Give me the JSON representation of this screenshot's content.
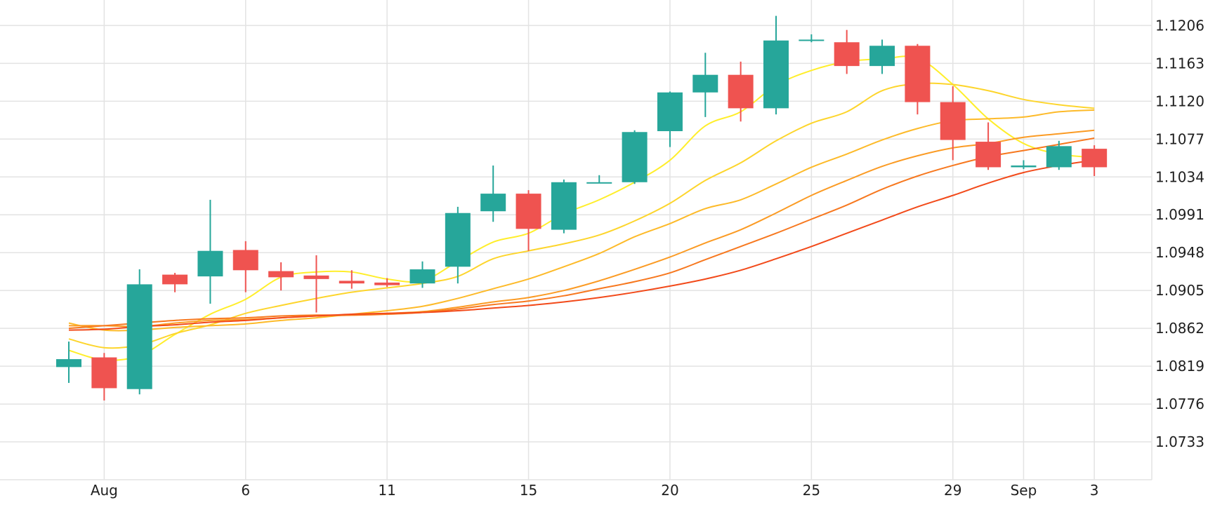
{
  "chart_data": {
    "type": "candlestick",
    "title": "",
    "xlabel": "",
    "ylabel": "",
    "ylim": [
      1.069,
      1.1235
    ],
    "grid": true,
    "legend": "none",
    "colors": {
      "up": "#26a69a",
      "down": "#ef5350",
      "grid": "#e3e3e3",
      "text": "#1f1f1f",
      "background": "#ffffff"
    },
    "y_ticks": [
      "1.1206",
      "1.1163",
      "1.1120",
      "1.1077",
      "1.1034",
      "1.0991",
      "1.0948",
      "1.0905",
      "1.0862",
      "1.0819",
      "1.0776",
      "1.0733"
    ],
    "x_ticks": [
      {
        "label": "Aug",
        "index": 1
      },
      {
        "label": "6",
        "index": 5
      },
      {
        "label": "11",
        "index": 9
      },
      {
        "label": "15",
        "index": 13
      },
      {
        "label": "20",
        "index": 17
      },
      {
        "label": "25",
        "index": 21
      },
      {
        "label": "29",
        "index": 25
      },
      {
        "label": "Sep",
        "index": 27
      },
      {
        "label": "3",
        "index": 29
      }
    ],
    "candles": [
      {
        "o": 1.0818,
        "h": 1.0847,
        "l": 1.08,
        "c": 1.0827
      },
      {
        "o": 1.0829,
        "h": 1.0834,
        "l": 1.078,
        "c": 1.0794
      },
      {
        "o": 1.0793,
        "h": 1.0929,
        "l": 1.0787,
        "c": 1.0912
      },
      {
        "o": 1.0923,
        "h": 1.0925,
        "l": 1.0903,
        "c": 1.0912
      },
      {
        "o": 1.0921,
        "h": 1.1008,
        "l": 1.089,
        "c": 1.095
      },
      {
        "o": 1.0951,
        "h": 1.0961,
        "l": 1.0903,
        "c": 1.0928
      },
      {
        "o": 1.0927,
        "h": 1.0937,
        "l": 1.0905,
        "c": 1.092
      },
      {
        "o": 1.0922,
        "h": 1.0945,
        "l": 1.088,
        "c": 1.0918
      },
      {
        "o": 1.0916,
        "h": 1.0928,
        "l": 1.0907,
        "c": 1.0913
      },
      {
        "o": 1.0914,
        "h": 1.0919,
        "l": 1.0909,
        "c": 1.0911
      },
      {
        "o": 1.0913,
        "h": 1.0938,
        "l": 1.0908,
        "c": 1.0929
      },
      {
        "o": 1.0932,
        "h": 1.1,
        "l": 1.0913,
        "c": 1.0993
      },
      {
        "o": 1.0995,
        "h": 1.1047,
        "l": 1.0983,
        "c": 1.1015
      },
      {
        "o": 1.1015,
        "h": 1.1019,
        "l": 1.095,
        "c": 1.0975
      },
      {
        "o": 1.0974,
        "h": 1.1031,
        "l": 1.097,
        "c": 1.1028
      },
      {
        "o": 1.1027,
        "h": 1.1036,
        "l": 1.1027,
        "c": 1.1028
      },
      {
        "o": 1.1028,
        "h": 1.1087,
        "l": 1.1026,
        "c": 1.1085
      },
      {
        "o": 1.1086,
        "h": 1.1131,
        "l": 1.1068,
        "c": 1.113
      },
      {
        "o": 1.113,
        "h": 1.1175,
        "l": 1.1102,
        "c": 1.115
      },
      {
        "o": 1.115,
        "h": 1.1165,
        "l": 1.1097,
        "c": 1.1112
      },
      {
        "o": 1.1112,
        "h": 1.1217,
        "l": 1.1105,
        "c": 1.1189
      },
      {
        "o": 1.119,
        "h": 1.1196,
        "l": 1.1187,
        "c": 1.119
      },
      {
        "o": 1.1187,
        "h": 1.1201,
        "l": 1.1151,
        "c": 1.116
      },
      {
        "o": 1.116,
        "h": 1.119,
        "l": 1.1151,
        "c": 1.1183
      },
      {
        "o": 1.1183,
        "h": 1.1185,
        "l": 1.1105,
        "c": 1.1119
      },
      {
        "o": 1.1119,
        "h": 1.1137,
        "l": 1.1053,
        "c": 1.1076
      },
      {
        "o": 1.1074,
        "h": 1.1096,
        "l": 1.1042,
        "c": 1.1045
      },
      {
        "o": 1.1045,
        "h": 1.1053,
        "l": 1.1043,
        "c": 1.1047
      },
      {
        "o": 1.1045,
        "h": 1.1075,
        "l": 1.1042,
        "c": 1.1069
      },
      {
        "o": 1.1066,
        "h": 1.107,
        "l": 1.1035,
        "c": 1.1045
      }
    ],
    "series": [
      {
        "color": "#ffee2b",
        "values": [
          1.0837,
          1.0826,
          1.0831,
          1.0855,
          1.0878,
          1.0895,
          1.092,
          1.0926,
          1.0926,
          1.0918,
          1.0916,
          1.0938,
          1.096,
          1.097,
          1.0992,
          1.1008,
          1.1028,
          1.1053,
          1.1092,
          1.1108,
          1.1138,
          1.1155,
          1.1165,
          1.1168,
          1.1169,
          1.1139,
          1.11,
          1.1072,
          1.106,
          1.1056
        ]
      },
      {
        "color": "#fdd52c",
        "values": [
          1.085,
          1.084,
          1.0843,
          1.0856,
          1.0866,
          1.0879,
          1.0888,
          1.0896,
          1.0903,
          1.0908,
          1.0913,
          1.0921,
          1.0941,
          1.095,
          1.0958,
          1.0968,
          1.0984,
          1.1004,
          1.103,
          1.105,
          1.1075,
          1.1095,
          1.1108,
          1.1132,
          1.114,
          1.1139,
          1.1132,
          1.1122,
          1.1116,
          1.1112
        ]
      },
      {
        "color": "#fdba29",
        "values": [
          1.0868,
          1.086,
          1.086,
          1.0863,
          1.0865,
          1.0867,
          1.0871,
          1.0874,
          1.0878,
          1.0882,
          1.0887,
          1.0896,
          1.0907,
          1.0918,
          1.0932,
          1.0947,
          1.0966,
          1.0981,
          1.0998,
          1.1008,
          1.1026,
          1.1045,
          1.106,
          1.1076,
          1.1089,
          1.1098,
          1.11,
          1.1102,
          1.1108,
          1.111
        ]
      },
      {
        "color": "#fb9b24",
        "values": [
          1.0865,
          1.0865,
          1.0864,
          1.0868,
          1.0871,
          1.0872,
          1.0874,
          1.0876,
          1.0877,
          1.0879,
          1.0881,
          1.0886,
          1.0892,
          1.0897,
          1.0905,
          1.0916,
          1.0929,
          1.0943,
          1.0959,
          1.0974,
          1.0993,
          1.1013,
          1.103,
          1.1046,
          1.1058,
          1.1067,
          1.1072,
          1.1079,
          1.1083,
          1.1087
        ]
      },
      {
        "color": "#f7781f",
        "values": [
          1.0862,
          1.0865,
          1.0868,
          1.0871,
          1.0873,
          1.0874,
          1.0876,
          1.0877,
          1.0877,
          1.0878,
          1.088,
          1.0884,
          1.0889,
          1.0893,
          1.0899,
          1.0907,
          1.0915,
          1.0925,
          1.094,
          1.0955,
          1.097,
          1.0986,
          1.1002,
          1.102,
          1.1035,
          1.1047,
          1.1057,
          1.1064,
          1.1071,
          1.1078
        ]
      },
      {
        "color": "#f24a1a",
        "values": [
          1.086,
          1.0861,
          1.0864,
          1.0866,
          1.0869,
          1.0871,
          1.0874,
          1.0876,
          1.0878,
          1.0879,
          1.088,
          1.0882,
          1.0885,
          1.0888,
          1.0892,
          1.0897,
          1.0903,
          1.091,
          1.0918,
          1.0928,
          1.0941,
          1.0955,
          1.097,
          1.0985,
          1.1,
          1.1013,
          1.1027,
          1.1039,
          1.1047,
          1.1053
        ]
      }
    ]
  }
}
